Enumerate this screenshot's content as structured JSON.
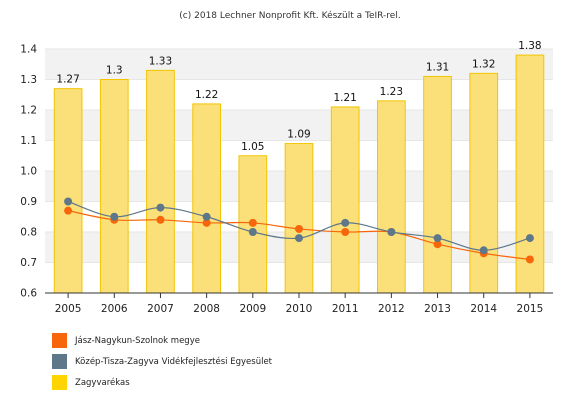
{
  "credit": "(c) 2018 Lechner Nonprofit Kft. Készült a TeIR-rel.",
  "colors": {
    "bar_fill": "#FBE07A",
    "bar_stroke": "#F2C500",
    "series_orange": "#F7660A",
    "series_slate": "#5F7889",
    "grid_band": "#F2F2F2",
    "axis": "#333333"
  },
  "chart_data": {
    "type": "bar",
    "categories": [
      "2005",
      "2006",
      "2007",
      "2008",
      "2009",
      "2010",
      "2011",
      "2012",
      "2013",
      "2014",
      "2015"
    ],
    "ylim": [
      0.6,
      1.4
    ],
    "yticks": [
      "0.6",
      "0.7",
      "0.8",
      "0.9",
      "1.0",
      "1.1",
      "1.2",
      "1.3",
      "1.4"
    ],
    "grid": true,
    "legend_position": "bottom-left",
    "bars": {
      "name": "Zagyvarékas",
      "values": [
        1.27,
        1.3,
        1.33,
        1.22,
        1.05,
        1.09,
        1.21,
        1.23,
        1.31,
        1.32,
        1.38
      ],
      "labels": [
        "1.27",
        "1.3",
        "1.33",
        "1.22",
        "1.05",
        "1.09",
        "1.21",
        "1.23",
        "1.31",
        "1.32",
        "1.38"
      ]
    },
    "lines": [
      {
        "name": "Jász-Nagykun-Szolnok megye",
        "color": "#F7660A",
        "values": [
          0.87,
          0.84,
          0.84,
          0.83,
          0.83,
          0.81,
          0.8,
          0.8,
          0.76,
          0.73,
          0.71
        ]
      },
      {
        "name": "Közép-Tisza-Zagyva Vidékfejlesztési Egyesület",
        "color": "#5F7889",
        "values": [
          0.9,
          0.85,
          0.88,
          0.85,
          0.8,
          0.78,
          0.83,
          0.8,
          0.78,
          0.74,
          0.78
        ]
      }
    ]
  },
  "legend": [
    {
      "label": "Jász-Nagykun-Szolnok megye",
      "color": "#F7660A"
    },
    {
      "label": "Közép-Tisza-Zagyva Vidékfejlesztési Egyesület",
      "color": "#5F7889"
    },
    {
      "label": "Zagyvarékas",
      "color": "#FFD400"
    }
  ]
}
